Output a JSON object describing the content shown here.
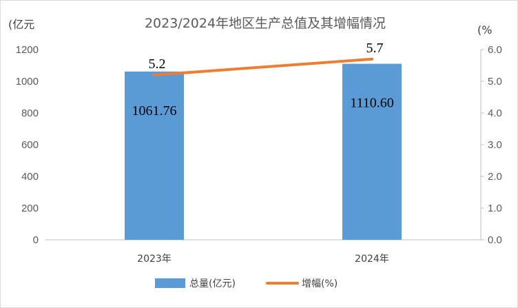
{
  "chart_data": {
    "type": "bar+line",
    "title": "2023/2024年地区生产总值及其增幅情况",
    "y_left_unit": "(亿元",
    "y_right_unit": "(%",
    "categories": [
      "2023年",
      "2024年"
    ],
    "series": [
      {
        "name": "总量(亿元)",
        "type": "bar",
        "axis": "left",
        "values": [
          1061.76,
          1110.6
        ],
        "labels": [
          "1061.76",
          "1110.60"
        ],
        "color": "#5b9bd5"
      },
      {
        "name": "增幅(%)",
        "type": "line",
        "axis": "right",
        "values": [
          5.2,
          5.7
        ],
        "labels": [
          "5.2",
          "5.7"
        ],
        "color": "#ed7d31"
      }
    ],
    "y_left": {
      "min": 0,
      "max": 1200,
      "ticks": [
        "0",
        "200",
        "400",
        "600",
        "800",
        "1000",
        "1200"
      ]
    },
    "y_right": {
      "min": 0,
      "max": 6,
      "ticks": [
        "0.0",
        "1.0",
        "2.0",
        "3.0",
        "4.0",
        "5.0",
        "6.0"
      ]
    },
    "grid": false,
    "legend": "bottom"
  }
}
